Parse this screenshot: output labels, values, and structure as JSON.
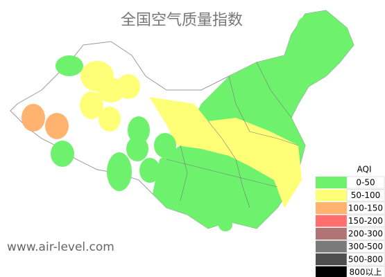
{
  "title": "全国空气质量指数",
  "legend": {
    "title": "AQI",
    "items": [
      {
        "label": "0-50",
        "color": "#6ef26e"
      },
      {
        "label": "50-100",
        "color": "#ffff77"
      },
      {
        "label": "100-150",
        "color": "#ffb36e"
      },
      {
        "label": "150-200",
        "color": "#ff6e6e"
      },
      {
        "label": "200-300",
        "color": "#b07474"
      },
      {
        "label": "300-500",
        "color": "#7a7a7a"
      },
      {
        "label": "500-800",
        "color": "#4f4f4f"
      },
      {
        "label": "800以上",
        "color": "#000000"
      }
    ]
  },
  "watermark": "www.air-level.com"
}
